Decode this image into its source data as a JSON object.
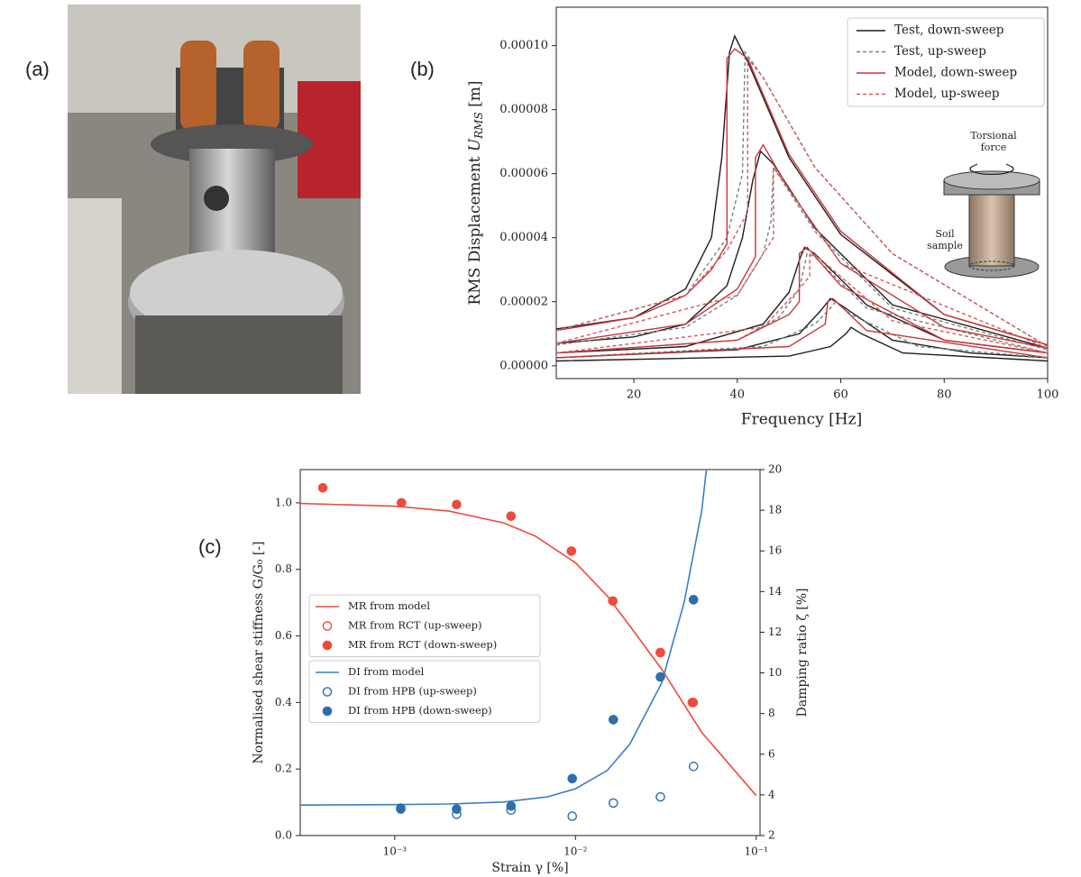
{
  "photo_panel": {
    "label": "(a)"
  },
  "chart_data": [
    {
      "type": "line",
      "panel_label": "(b)",
      "xlabel": "Frequency [Hz]",
      "ylabel": {
        "text": "RMS Displacement",
        "symbol": "U",
        "subscript": "RMS",
        "unit": "[m]"
      },
      "xlim": [
        5,
        100
      ],
      "xticks": [
        20,
        40,
        60,
        80,
        100
      ],
      "ylim": [
        -4e-06,
        0.000112
      ],
      "yticks": [
        {
          "value": 0,
          "label": "0.00000"
        },
        {
          "value": 2e-05,
          "label": "0.00002"
        },
        {
          "value": 4e-05,
          "label": "0.00004"
        },
        {
          "value": 6e-05,
          "label": "0.00006"
        },
        {
          "value": 8e-05,
          "label": "0.00008"
        },
        {
          "value": 0.0001,
          "label": "0.00010"
        }
      ],
      "legend": "upper right",
      "inset_labels": [
        [
          "Torsional",
          "force"
        ],
        [
          "Soil",
          "sample"
        ]
      ],
      "series": [
        {
          "name": "Test, down-sweep",
          "color": "#1e1e1e",
          "dash": "solid",
          "curves": [
            {
              "x": [
                5,
                20,
                30,
                35,
                37,
                38.5,
                39.5,
                42,
                50,
                60,
                80,
                100
              ],
              "values": [
                1.15e-05,
                1.5e-05,
                2.4e-05,
                4e-05,
                6.5e-05,
                9.8e-05,
                0.000103,
                9.5e-05,
                6.5e-05,
                4.1e-05,
                1.6e-05,
                6.5e-06
              ]
            },
            {
              "x": [
                5,
                20,
                30,
                38,
                41,
                43,
                44.5,
                47,
                55,
                70,
                100
              ],
              "values": [
                7e-06,
                9e-06,
                1.3e-05,
                2.5e-05,
                4e-05,
                5.8e-05,
                6.7e-05,
                6.3e-05,
                4.3e-05,
                1.9e-05,
                5.5e-06
              ]
            },
            {
              "x": [
                5,
                30,
                45,
                50,
                52,
                53,
                55,
                65,
                80,
                100
              ],
              "values": [
                4e-06,
                6e-06,
                1.3e-05,
                2.3e-05,
                3.3e-05,
                3.7e-05,
                3.5e-05,
                1.9e-05,
                8e-06,
                4e-06
              ]
            },
            {
              "x": [
                5,
                40,
                52,
                56,
                58,
                60,
                70,
                85,
                100
              ],
              "values": [
                2.5e-06,
                5e-06,
                1e-05,
                1.7e-05,
                2.1e-05,
                1.9e-05,
                8e-06,
                4e-06,
                2.5e-06
              ]
            },
            {
              "x": [
                5,
                50,
                58,
                61,
                62,
                64,
                72,
                100
              ],
              "values": [
                1.5e-06,
                3e-06,
                6e-06,
                1e-05,
                1.2e-05,
                1e-05,
                4e-06,
                1.5e-06
              ]
            }
          ]
        },
        {
          "name": "Test, up-sweep",
          "color": "#6f8584",
          "dash": "dashed",
          "curves": [
            {
              "x": [
                5,
                30,
                38,
                41,
                41.5,
                45,
                55,
                70,
                100
              ],
              "values": [
                1.1e-05,
                2.2e-05,
                4e-05,
                6e-05,
                9.8e-05,
                9e-05,
                6.2e-05,
                3.5e-05,
                6e-06
              ]
            },
            {
              "x": [
                5,
                30,
                40,
                45,
                46.5,
                47,
                55,
                70,
                100
              ],
              "values": [
                6.5e-06,
                1.2e-05,
                2.2e-05,
                3.5e-05,
                4.5e-05,
                6.2e-05,
                4.2e-05,
                1.8e-05,
                5e-06
              ]
            },
            {
              "x": [
                5,
                40,
                48,
                52,
                53.5,
                55,
                65,
                100
              ],
              "values": [
                4e-06,
                8e-06,
                1.5e-05,
                2.4e-05,
                3.5e-05,
                3.4e-05,
                1.8e-05,
                4e-06
              ]
            },
            {
              "x": [
                5,
                45,
                55,
                58,
                59,
                62,
                75,
                100
              ],
              "values": [
                2.5e-06,
                6e-06,
                1.3e-05,
                1.8e-05,
                2e-05,
                1.6e-05,
                6e-06,
                2.5e-06
              ]
            }
          ]
        },
        {
          "name": "Model, down-sweep",
          "color": "#c8363a",
          "dash": "solid",
          "curves": [
            {
              "x": [
                5,
                20,
                30,
                35,
                38,
                38,
                39.5,
                42,
                50,
                60,
                80,
                100
              ],
              "values": [
                1.1e-05,
                1.5e-05,
                2.2e-05,
                3e-05,
                3.8e-05,
                9.6e-05,
                9.9e-05,
                9.6e-05,
                6.6e-05,
                4.2e-05,
                1.6e-05,
                6.5e-06
              ]
            },
            {
              "x": [
                5,
                30,
                40,
                43.5,
                43.5,
                45,
                50,
                60,
                80,
                100
              ],
              "values": [
                7e-06,
                1.3e-05,
                2.4e-05,
                3.4e-05,
                6.5e-05,
                6.9e-05,
                5.5e-05,
                3.2e-05,
                1.2e-05,
                5.5e-06
              ]
            },
            {
              "x": [
                5,
                40,
                50,
                52,
                52,
                53.5,
                60,
                80,
                100
              ],
              "values": [
                4e-06,
                8e-06,
                1.6e-05,
                2e-05,
                3.5e-05,
                3.7e-05,
                2.5e-05,
                8e-06,
                4e-06
              ]
            },
            {
              "x": [
                5,
                50,
                57,
                57.5,
                58.5,
                65,
                100
              ],
              "values": [
                2.5e-06,
                6e-06,
                1.3e-05,
                2e-05,
                2.1e-05,
                1.1e-05,
                2.5e-06
              ]
            }
          ]
        },
        {
          "name": "Model, up-sweep",
          "color": "#d9585c",
          "dash": "dashed",
          "curves": [
            {
              "x": [
                5,
                30,
                38,
                41,
                42,
                42,
                45,
                55,
                70,
                100
              ],
              "values": [
                1.1e-05,
                2.2e-05,
                3.6e-05,
                4.5e-05,
                4.8e-05,
                9.6e-05,
                9e-05,
                6.2e-05,
                3.5e-05,
                6e-06
              ]
            },
            {
              "x": [
                5,
                40,
                45,
                47,
                47,
                50,
                60,
                100
              ],
              "values": [
                7e-06,
                2.2e-05,
                3.5e-05,
                4e-05,
                6.2e-05,
                5.5e-05,
                3.2e-05,
                5.5e-06
              ]
            },
            {
              "x": [
                5,
                45,
                52,
                54,
                54,
                57,
                70,
                100
              ],
              "values": [
                4e-06,
                1.2e-05,
                2.4e-05,
                2.8e-05,
                3.6e-05,
                3.2e-05,
                1.4e-05,
                4e-06
              ]
            }
          ]
        }
      ]
    },
    {
      "type": "line",
      "panel_label": "(c)",
      "xlabel": "Strain γ [%]",
      "ylabel": "Normalised shear stiffness  G/G₀ [-]",
      "y2label": "Damping ratio  ζ [%]",
      "log_x": true,
      "xlim": [
        0.0003,
        0.105
      ],
      "xticks": [
        {
          "value": 0.001,
          "label": "10⁻³"
        },
        {
          "value": 0.01,
          "label": "10⁻²"
        },
        {
          "value": 0.1,
          "label": "10⁻¹"
        }
      ],
      "ylim": [
        0,
        1.1
      ],
      "yticks": [
        {
          "value": 0,
          "label": "0.0"
        },
        {
          "value": 0.2,
          "label": "0.2"
        },
        {
          "value": 0.4,
          "label": "0.4"
        },
        {
          "value": 0.6,
          "label": "0.6"
        },
        {
          "value": 0.8,
          "label": "0.8"
        },
        {
          "value": 1,
          "label": "1.0"
        }
      ],
      "y2lim": [
        2,
        20
      ],
      "y2ticks": [
        2,
        4,
        6,
        8,
        10,
        12,
        14,
        16,
        18,
        20
      ],
      "series": [
        {
          "name": "MR from model",
          "color": "#ef4a3c",
          "kind": "line",
          "axis": "y",
          "x": [
            0.0003,
            0.001,
            0.002,
            0.004,
            0.006,
            0.01,
            0.015,
            0.02,
            0.03,
            0.05,
            0.1
          ],
          "values": [
            0.998,
            0.99,
            0.975,
            0.94,
            0.9,
            0.82,
            0.72,
            0.63,
            0.5,
            0.31,
            0.12
          ]
        },
        {
          "name": "MR from RCT (up-sweep)",
          "color": "#ef4a3c",
          "kind": "scatter",
          "marker": "open",
          "axis": "y",
          "x": [
            0.0295,
            0.0448
          ],
          "values": [
            0.55,
            0.4
          ]
        },
        {
          "name": "MR from RCT (down-sweep)",
          "color": "#ef4a3c",
          "kind": "scatter",
          "marker": "filled",
          "axis": "y",
          "x": [
            0.0004,
            0.00109,
            0.0022,
            0.0044,
            0.0095,
            0.0161,
            0.0295,
            0.0443
          ],
          "values": [
            1.045,
            1.0,
            0.995,
            0.96,
            0.855,
            0.705,
            0.55,
            0.4
          ]
        },
        {
          "name": "DI from model",
          "color": "#3b7fc4",
          "kind": "line",
          "axis": "y2",
          "x": [
            0.0003,
            0.001,
            0.002,
            0.004,
            0.007,
            0.01,
            0.015,
            0.02,
            0.03,
            0.04,
            0.05,
            0.053
          ],
          "values": [
            3.5,
            3.52,
            3.55,
            3.65,
            3.9,
            4.3,
            5.2,
            6.5,
            9.5,
            13.5,
            18,
            20
          ]
        },
        {
          "name": "DI from HPB (up-sweep)",
          "color": "#2e6ead",
          "kind": "scatter",
          "marker": "open",
          "axis": "y2",
          "x": [
            0.00108,
            0.0022,
            0.0044,
            0.0096,
            0.0162,
            0.0295,
            0.045
          ],
          "values": [
            3.3,
            3.05,
            3.25,
            2.95,
            3.6,
            3.9,
            5.4
          ]
        },
        {
          "name": "DI from HPB (down-sweep)",
          "color": "#2e6ead",
          "kind": "scatter",
          "marker": "filled",
          "axis": "y2",
          "x": [
            0.00108,
            0.0022,
            0.0044,
            0.0096,
            0.0162,
            0.0295,
            0.045
          ],
          "values": [
            3.35,
            3.3,
            3.45,
            4.8,
            7.7,
            9.8,
            13.6
          ]
        }
      ]
    }
  ]
}
